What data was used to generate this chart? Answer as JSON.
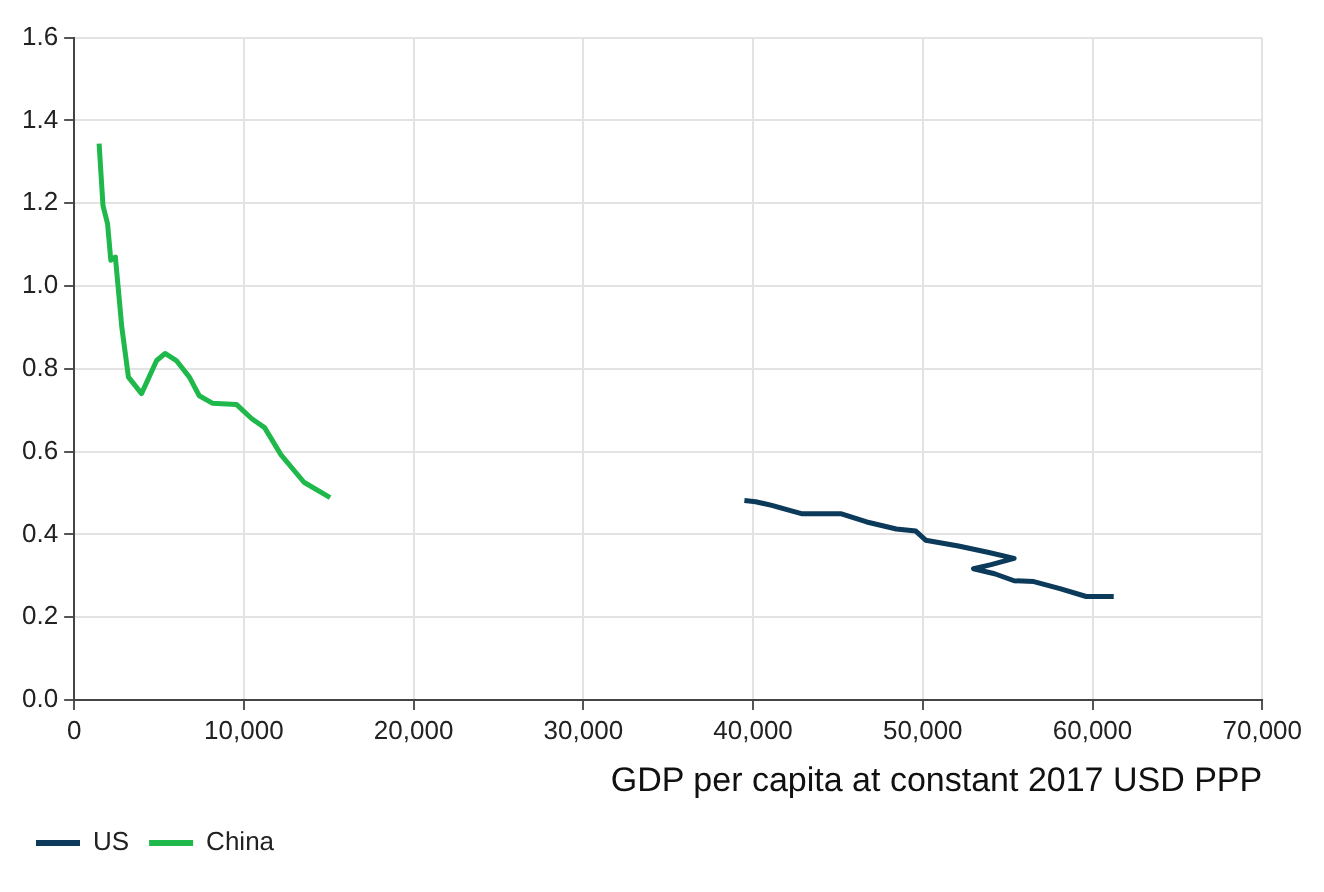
{
  "chart_data": {
    "type": "line",
    "xlabel": "GDP per capita at constant 2017 USD PPP",
    "xlim": [
      0,
      70000
    ],
    "xticks": [
      0,
      {
        "value": 10000,
        "label": "10,000"
      },
      {
        "value": 20000,
        "label": "20,000"
      },
      {
        "value": 30000,
        "label": "30,000"
      },
      {
        "value": 40000,
        "label": "40,000"
      },
      {
        "value": 50000,
        "label": "50,000"
      },
      {
        "value": 60000,
        "label": "60,000"
      },
      {
        "value": 70000,
        "label": "70,000"
      }
    ],
    "ylim": [
      0,
      1.6
    ],
    "yticks": [
      {
        "value": 0,
        "label": "0.0"
      },
      {
        "value": 0.2,
        "label": "0.2"
      },
      {
        "value": 0.4,
        "label": "0.4"
      },
      {
        "value": 0.6,
        "label": "0.6"
      },
      {
        "value": 0.8,
        "label": "0.8"
      },
      {
        "value": 1,
        "label": "1.0"
      },
      {
        "value": 1.2,
        "label": "1.2"
      },
      {
        "value": 1.4,
        "label": "1.4"
      },
      {
        "value": 1.6,
        "label": "1.6"
      }
    ],
    "grid": true,
    "legend": "bottom left",
    "marker": "none",
    "line_style": "solid",
    "series": [
      {
        "name": "US",
        "color": "#0b3a5a",
        "x": [
          39490,
          40150,
          41110,
          42850,
          45160,
          46700,
          48440,
          49590,
          50170,
          52100,
          53830,
          55380,
          54030,
          52990,
          54230,
          55380,
          56540,
          58080,
          59630,
          61250
        ],
        "values": [
          0.482,
          0.479,
          0.47,
          0.45,
          0.45,
          0.43,
          0.413,
          0.408,
          0.386,
          0.372,
          0.357,
          0.342,
          0.327,
          0.317,
          0.305,
          0.288,
          0.286,
          0.269,
          0.25,
          0.25
        ]
      },
      {
        "name": "China",
        "color": "#1fb84a",
        "x": [
          1470,
          1700,
          1970,
          2160,
          2430,
          2810,
          3200,
          3970,
          4860,
          5360,
          6020,
          6790,
          7370,
          8140,
          9560,
          10450,
          11220,
          12190,
          13540,
          15080
        ],
        "values": [
          1.344,
          1.194,
          1.15,
          1.062,
          1.07,
          0.9,
          0.78,
          0.74,
          0.82,
          0.837,
          0.82,
          0.78,
          0.735,
          0.717,
          0.714,
          0.68,
          0.658,
          0.592,
          0.526,
          0.489
        ]
      }
    ]
  }
}
